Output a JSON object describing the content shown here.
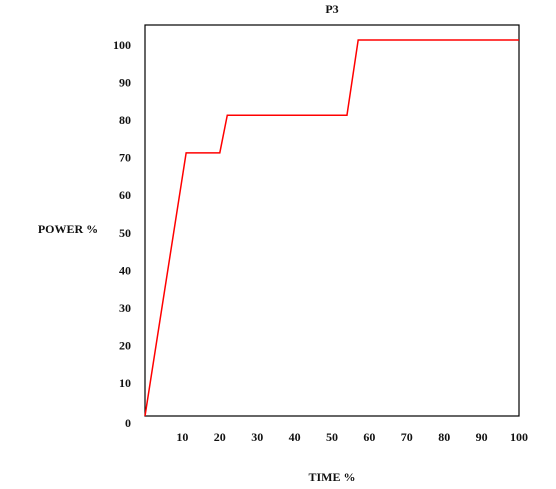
{
  "chart_data": {
    "type": "line",
    "title": "P3",
    "x_label": "TIME %",
    "y_label": "POWER %",
    "x": [
      0,
      11,
      20,
      22,
      54,
      57,
      100
    ],
    "series": [
      {
        "name": "P3",
        "color": "#ff0000",
        "values": [
          0,
          70,
          70,
          80,
          80,
          100,
          100
        ]
      }
    ],
    "xlim": [
      0,
      100
    ],
    "xticks": [
      10,
      20,
      30,
      40,
      50,
      60,
      70,
      80,
      90,
      100
    ],
    "ylim": [
      0,
      104
    ],
    "yticks": [
      0,
      10,
      20,
      30,
      40,
      50,
      60,
      70,
      80,
      90,
      100
    ],
    "grid": false
  }
}
